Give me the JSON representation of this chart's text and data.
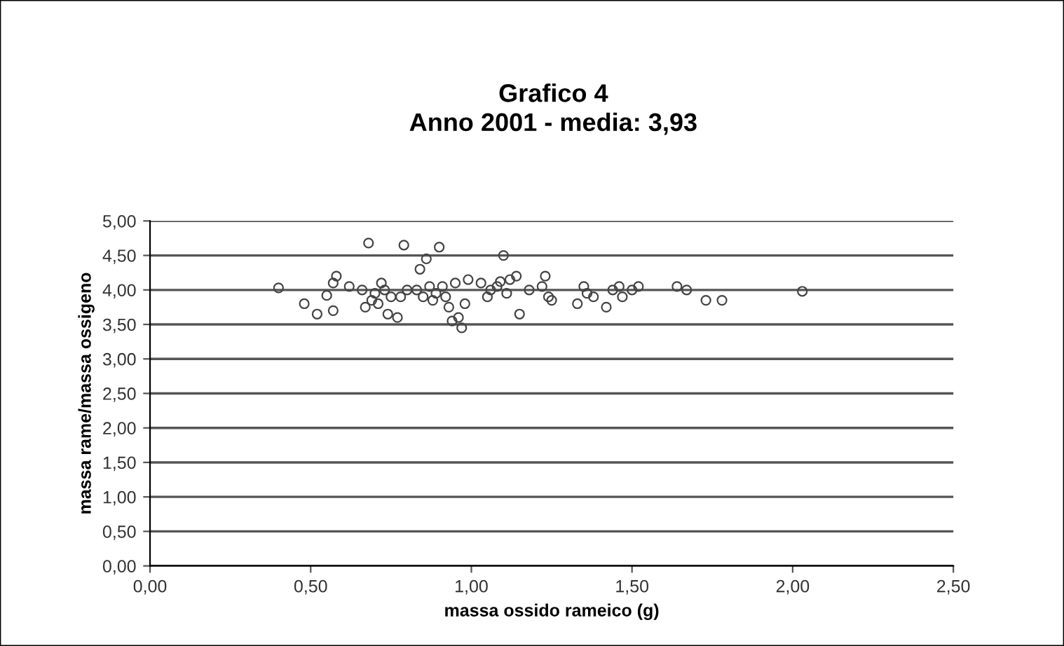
{
  "chart_data": {
    "type": "scatter",
    "title": "Grafico 4\nAnno 2001 - media: 3,93",
    "xlabel": "massa ossido rameico (g)",
    "ylabel": "massa rame/massa ossigeno",
    "x": [
      0.4,
      0.48,
      0.52,
      0.55,
      0.57,
      0.57,
      0.58,
      0.62,
      0.66,
      0.67,
      0.68,
      0.69,
      0.7,
      0.71,
      0.72,
      0.73,
      0.74,
      0.75,
      0.77,
      0.78,
      0.79,
      0.8,
      0.83,
      0.84,
      0.85,
      0.86,
      0.87,
      0.88,
      0.89,
      0.9,
      0.91,
      0.92,
      0.93,
      0.94,
      0.95,
      0.96,
      0.97,
      0.98,
      0.99,
      1.03,
      1.05,
      1.06,
      1.08,
      1.09,
      1.1,
      1.11,
      1.12,
      1.14,
      1.15,
      1.18,
      1.22,
      1.23,
      1.24,
      1.25,
      1.33,
      1.35,
      1.36,
      1.38,
      1.42,
      1.44,
      1.46,
      1.47,
      1.5,
      1.52,
      1.64,
      1.67,
      1.73,
      1.78,
      2.03
    ],
    "series": [
      {
        "color": "#444444",
        "values": [
          4.03,
          3.8,
          3.65,
          3.92,
          3.7,
          4.1,
          4.2,
          4.05,
          4.0,
          3.75,
          4.68,
          3.85,
          3.95,
          3.8,
          4.1,
          4.0,
          3.65,
          3.9,
          3.6,
          3.9,
          4.65,
          4.0,
          4.0,
          4.3,
          3.9,
          4.45,
          4.05,
          3.85,
          3.95,
          4.62,
          4.05,
          3.9,
          3.75,
          3.55,
          4.1,
          3.6,
          3.45,
          3.8,
          4.15,
          4.1,
          3.9,
          4.0,
          4.05,
          4.12,
          4.5,
          3.95,
          4.15,
          4.2,
          3.65,
          4.0,
          4.05,
          4.2,
          3.9,
          3.85,
          3.8,
          4.05,
          3.95,
          3.9,
          3.75,
          4.0,
          4.05,
          3.9,
          4.0,
          4.05,
          4.05,
          4.0,
          3.85,
          3.85,
          3.98
        ]
      }
    ],
    "xlim": [
      0,
      2.5
    ],
    "ylim": [
      0,
      5
    ],
    "xticks": [
      {
        "value": 0,
        "label": "0,00"
      },
      {
        "value": 0.5,
        "label": "0,50"
      },
      {
        "value": 1,
        "label": "1,00"
      },
      {
        "value": 1.5,
        "label": "1,50"
      },
      {
        "value": 2,
        "label": "2,00"
      },
      {
        "value": 2.5,
        "label": "2,50"
      }
    ],
    "yticks": [
      {
        "value": 0,
        "label": "0,00"
      },
      {
        "value": 0.5,
        "label": "0,50"
      },
      {
        "value": 1,
        "label": "1,00"
      },
      {
        "value": 1.5,
        "label": "1,50"
      },
      {
        "value": 2,
        "label": "2,00"
      },
      {
        "value": 2.5,
        "label": "2,50"
      },
      {
        "value": 3,
        "label": "3,00"
      },
      {
        "value": 3.5,
        "label": "3,50"
      },
      {
        "value": 4,
        "label": "4,00"
      },
      {
        "value": 4.5,
        "label": "4,50"
      },
      {
        "value": 5,
        "label": "5,00"
      }
    ],
    "grid": "y",
    "marker": "circle",
    "legend": false
  }
}
